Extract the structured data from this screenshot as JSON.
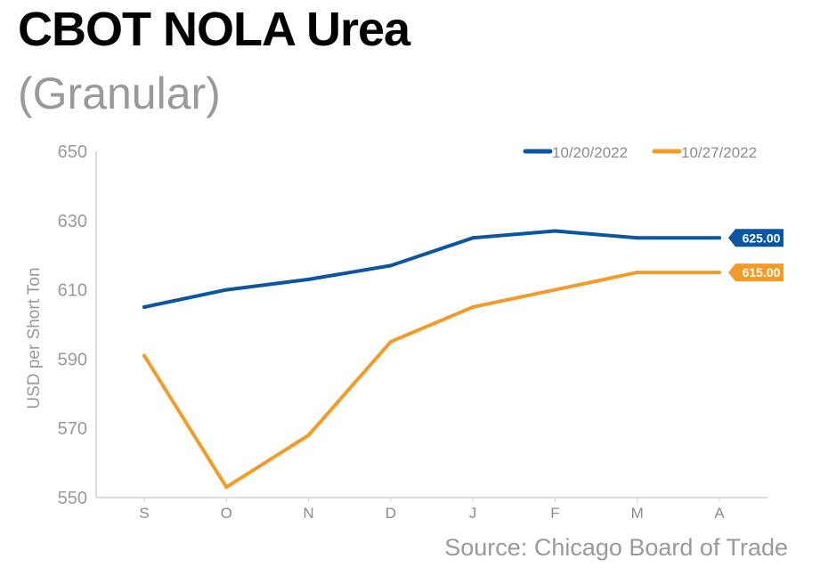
{
  "header": {
    "title": "CBOT NOLA Urea",
    "subtitle": "(Granular)"
  },
  "footer": {
    "source": "Source: Chicago Board of Trade"
  },
  "chart_data": {
    "type": "line",
    "title": "CBOT NOLA Urea",
    "subtitle": "(Granular)",
    "xlabel": "",
    "ylabel": "USD per Short Ton",
    "categories": [
      "S",
      "O",
      "N",
      "D",
      "J",
      "F",
      "M",
      "A"
    ],
    "ylim": [
      550,
      650
    ],
    "yticks": [
      550,
      570,
      590,
      610,
      630,
      650
    ],
    "grid": false,
    "legend": "top-right",
    "series": [
      {
        "name": "10/20/2022",
        "color": "#0a56a3",
        "values": [
          605,
          610,
          613,
          617,
          625,
          627,
          625,
          625
        ],
        "end_label": "625.00"
      },
      {
        "name": "10/27/2022",
        "color": "#f39b28",
        "values": [
          591,
          553,
          568,
          595,
          605,
          610,
          615,
          615
        ],
        "end_label": "615.00"
      }
    ]
  }
}
